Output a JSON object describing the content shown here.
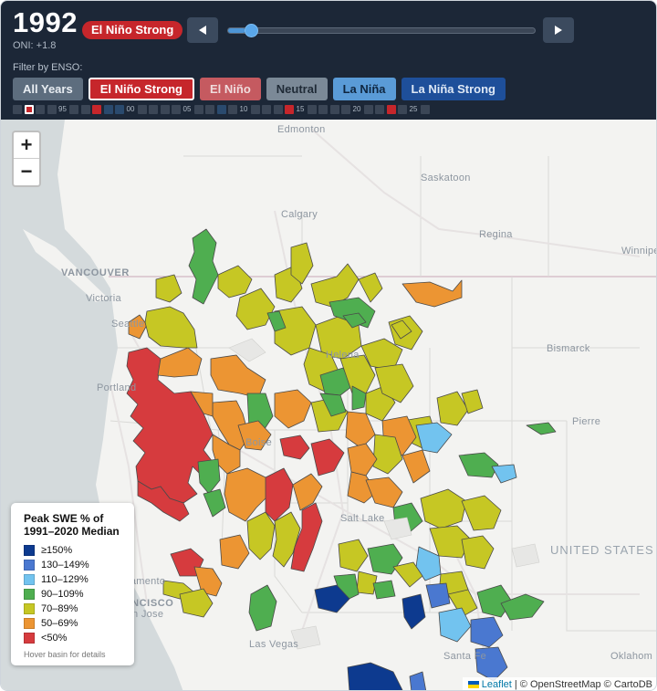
{
  "header": {
    "year": "1992",
    "enso_badge": "El Niño Strong",
    "oni": "ONI: +1.8",
    "filter_label": "Filter by ENSO:",
    "prev_icon": "play-left-icon",
    "next_icon": "play-right-icon",
    "slider_progress": 0.04
  },
  "filters": [
    {
      "label": "All Years"
    },
    {
      "label": "El Niño Strong"
    },
    {
      "label": "El Niño"
    },
    {
      "label": "Neutral"
    },
    {
      "label": "La Niña"
    },
    {
      "label": "La Niña Strong"
    }
  ],
  "timeline": {
    "year_labels": [
      "95",
      "00",
      "05",
      "10",
      "15",
      "20",
      "25"
    ],
    "selected_year": "1992",
    "phase_colors": {
      "el_nino_strong": "#c6262b",
      "el_nino": "#5a3a4a",
      "neutral": "#3b4656",
      "la_nina": "#2a4a6e",
      "la_nina_strong": "#1e3f78"
    }
  },
  "map": {
    "zoom_in": "+",
    "zoom_out": "−",
    "cities": {
      "edmonton": "Edmonton",
      "saskatoon": "Saskatoon",
      "calgary": "Calgary",
      "regina": "Regina",
      "winnipeg": "Winnipe",
      "vancouver": "VANCOUVER",
      "victoria": "Victoria",
      "seattle": "Seattle",
      "portland": "Portland",
      "helena": "Helena",
      "bismarck": "Bismarck",
      "pierre": "Pierre",
      "boise": "Boise",
      "salt_lake": "Salt Lake",
      "united_states": "UNITED STATES",
      "sacramento": "Sacramento",
      "san_francisco": "SAN FRANCISCO",
      "san_jose": "San Jose",
      "las_vegas": "Las Vegas",
      "santa_fe": "Santa Fe",
      "oklahoma": "Oklahom"
    }
  },
  "legend": {
    "title": "Peak SWE % of 1991–2020 Median",
    "items": [
      {
        "label": "≥150%",
        "color": "#0d3a8f"
      },
      {
        "label": "130–149%",
        "color": "#4a78d0"
      },
      {
        "label": "110–129%",
        "color": "#72c3ef"
      },
      {
        "label": "90–109%",
        "color": "#4fae50"
      },
      {
        "label": "70–89%",
        "color": "#c6c724"
      },
      {
        "label": "50–69%",
        "color": "#ec9533"
      },
      {
        "label": "<50%",
        "color": "#d63b3e"
      }
    ],
    "hint": "Hover basin for details"
  },
  "attribution": {
    "link": "Leaflet",
    "rest": " | © OpenStreetMap © CartoDB"
  }
}
